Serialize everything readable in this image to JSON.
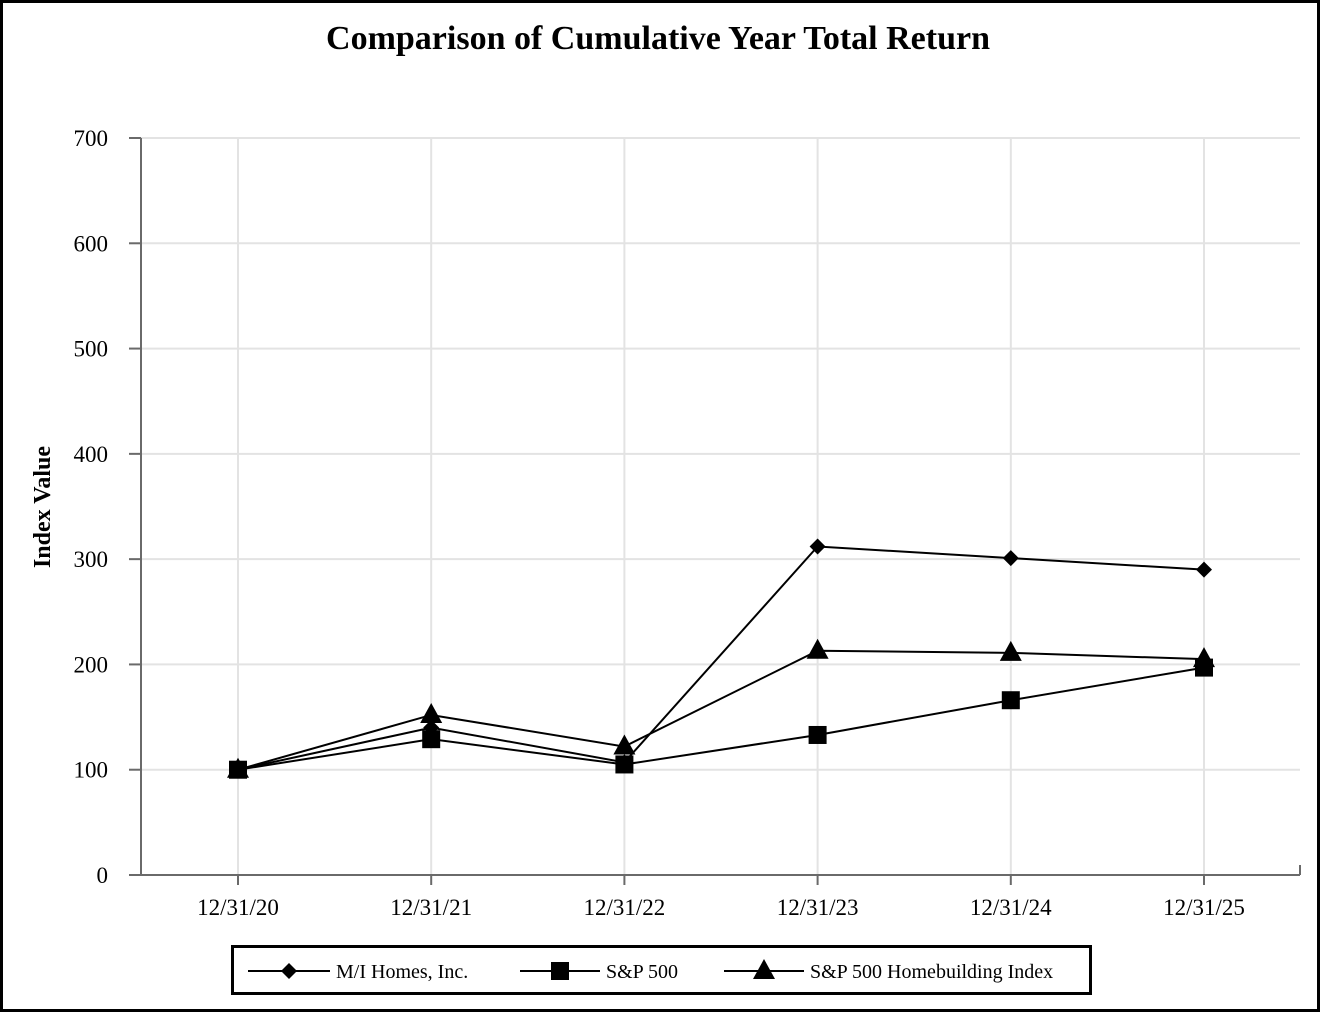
{
  "chart_data": {
    "type": "line",
    "title": "Comparison of Cumulative Year Total Return",
    "xlabel": "",
    "ylabel": "Index Value",
    "categories": [
      "12/31/20",
      "12/31/21",
      "12/31/22",
      "12/31/23",
      "12/31/24",
      "12/31/25"
    ],
    "ylim": [
      0,
      700
    ],
    "yticks": [
      0,
      100,
      200,
      300,
      400,
      500,
      600,
      700
    ],
    "grid": true,
    "legend_position": "bottom",
    "series": [
      {
        "name": "M/I Homes, Inc.",
        "marker": "diamond",
        "color": "#000000",
        "values": [
          100,
          140,
          107,
          312,
          301,
          290
        ]
      },
      {
        "name": "S&P 500",
        "marker": "square",
        "color": "#000000",
        "values": [
          100,
          129,
          105,
          133,
          166,
          197
        ]
      },
      {
        "name": "S&P 500 Homebuilding Index",
        "marker": "triangle",
        "color": "#000000",
        "values": [
          100,
          152,
          122,
          213,
          211,
          205
        ]
      }
    ]
  }
}
